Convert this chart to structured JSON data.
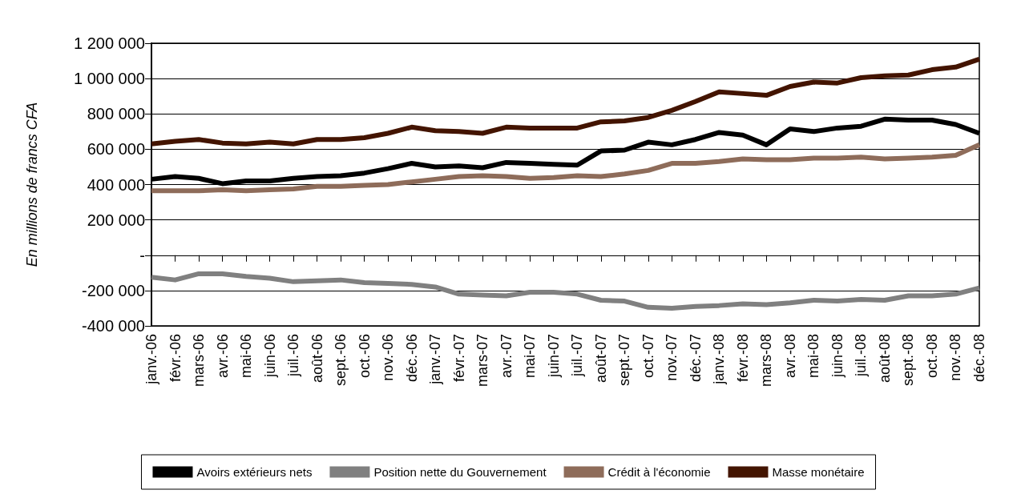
{
  "chart_data": {
    "type": "line",
    "ylabel": "En millions de francs CFA",
    "categories": [
      "janv.-06",
      "févr.-06",
      "mars-06",
      "avr.-06",
      "mai-06",
      "juin-06",
      "juil.-06",
      "août-06",
      "sept.-06",
      "oct.-06",
      "nov.-06",
      "déc.-06",
      "janv.-07",
      "févr.-07",
      "mars-07",
      "avr.-07",
      "mai-07",
      "juin-07",
      "juil.-07",
      "août-07",
      "sept.-07",
      "oct.-07",
      "nov.-07",
      "déc.-07",
      "janv.-08",
      "févr.-08",
      "mars-08",
      "avr.-08",
      "mai-08",
      "juin-08",
      "juil.-08",
      "août-08",
      "sept.-08",
      "oct.-08",
      "nov.-08",
      "déc.-08"
    ],
    "series": [
      {
        "name": "Avoirs extérieurs nets",
        "color": "#000000",
        "values": [
          430000,
          445000,
          435000,
          405000,
          420000,
          420000,
          435000,
          445000,
          450000,
          465000,
          490000,
          520000,
          500000,
          505000,
          495000,
          525000,
          520000,
          515000,
          510000,
          590000,
          595000,
          640000,
          625000,
          655000,
          695000,
          680000,
          625000,
          715000,
          700000,
          720000,
          730000,
          770000,
          765000,
          765000,
          740000,
          690000
        ]
      },
      {
        "name": "Position nette du Gouvernement",
        "color": "#808080",
        "values": [
          -125000,
          -140000,
          -105000,
          -105000,
          -120000,
          -130000,
          -150000,
          -145000,
          -140000,
          -155000,
          -160000,
          -165000,
          -180000,
          -220000,
          -225000,
          -230000,
          -210000,
          -210000,
          -220000,
          -255000,
          -260000,
          -295000,
          -300000,
          -290000,
          -285000,
          -275000,
          -280000,
          -270000,
          -255000,
          -260000,
          -250000,
          -255000,
          -230000,
          -230000,
          -220000,
          -185000
        ]
      },
      {
        "name": "Crédit à l'économie",
        "color": "#8e6c5a",
        "values": [
          365000,
          365000,
          365000,
          370000,
          365000,
          370000,
          375000,
          390000,
          390000,
          395000,
          400000,
          415000,
          430000,
          445000,
          450000,
          445000,
          435000,
          440000,
          450000,
          445000,
          460000,
          480000,
          520000,
          520000,
          530000,
          545000,
          540000,
          540000,
          550000,
          550000,
          555000,
          545000,
          550000,
          555000,
          565000,
          625000
        ]
      },
      {
        "name": "Masse monétaire",
        "color": "#431400",
        "values": [
          630000,
          645000,
          655000,
          635000,
          630000,
          640000,
          630000,
          655000,
          655000,
          665000,
          690000,
          725000,
          705000,
          700000,
          690000,
          725000,
          720000,
          720000,
          720000,
          755000,
          760000,
          780000,
          820000,
          870000,
          925000,
          915000,
          905000,
          955000,
          980000,
          975000,
          1005000,
          1015000,
          1020000,
          1050000,
          1065000,
          1110000
        ]
      }
    ],
    "ylim": [
      -400000,
      1200000
    ],
    "yticks": [
      -400000,
      -200000,
      {
        "value": 0,
        "label": "-"
      },
      200000,
      400000,
      600000,
      800000,
      1000000,
      1200000
    ],
    "grid": "y",
    "legend": "bottom",
    "marker": "none",
    "line_style": "solid"
  }
}
